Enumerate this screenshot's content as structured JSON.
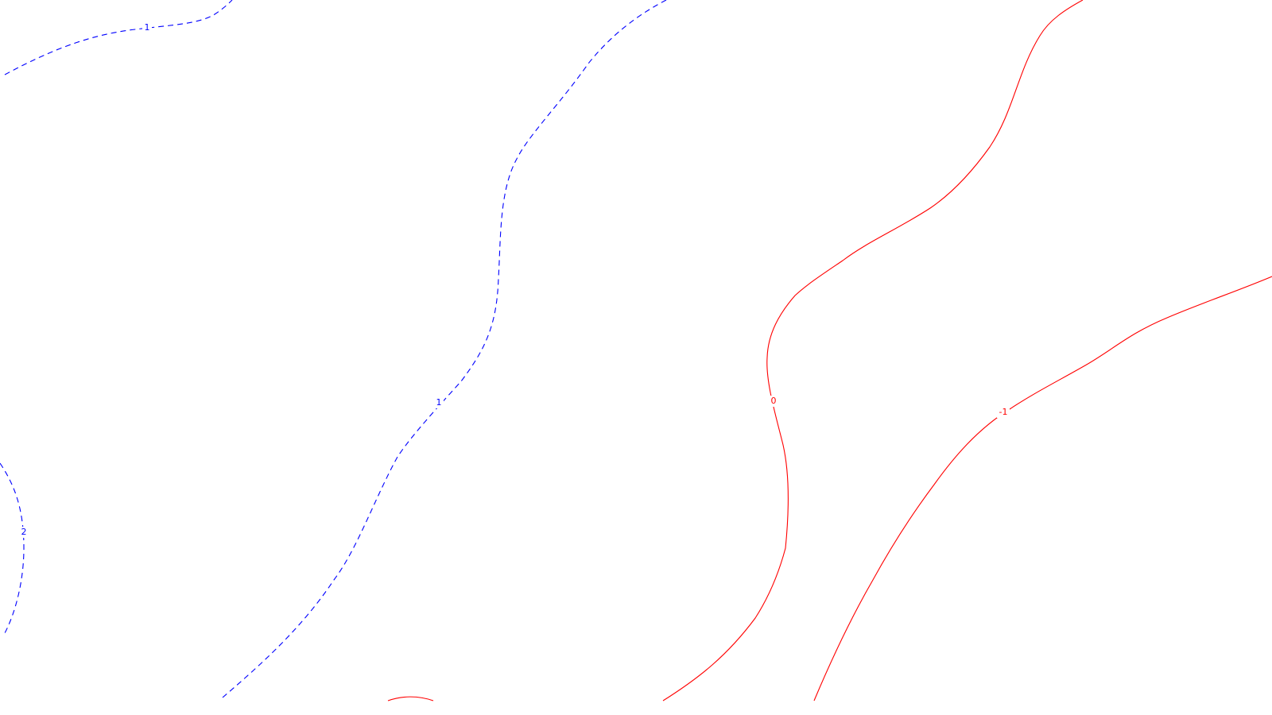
{
  "map": {
    "styles": {
      "positive": {
        "color": "#0000ff",
        "line": "dashed"
      },
      "negative": {
        "color": "#ff0000",
        "line": "solid"
      }
    },
    "contour_lines": [
      {
        "id": "contour-1-top-left",
        "level": 1,
        "label": "1",
        "style": "positive"
      },
      {
        "id": "contour-1-center",
        "level": 1,
        "label": "1",
        "style": "positive"
      },
      {
        "id": "contour-2-left",
        "level": 2,
        "label": "2",
        "style": "positive"
      },
      {
        "id": "contour-0-center-right",
        "level": 0,
        "label": "0",
        "style": "negative"
      },
      {
        "id": "contour-neg1-right",
        "level": -1,
        "label": "-1",
        "style": "negative"
      },
      {
        "id": "contour-bottom-arc",
        "level": 0,
        "label": "",
        "style": "negative"
      }
    ]
  }
}
